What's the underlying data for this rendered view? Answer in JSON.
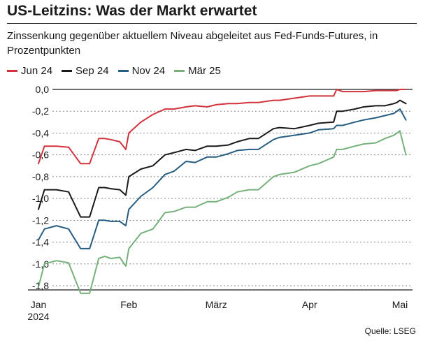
{
  "chart_data": {
    "type": "line",
    "title": "US-Leitzins: Was der Markt erwartet",
    "subtitle": "Zinssenkung gegenüber aktuellem Niveau abgeleitet aus Fed-Funds-Futures, in Prozentpunkten",
    "source": "Quelle: LSEG",
    "xlabel": "",
    "ylabel": "",
    "ylim": [
      -1.8,
      0.0
    ],
    "grid": true,
    "legend_placement": "top-left",
    "y_ticks": [
      "0,0",
      "-0,2",
      "-0,4",
      "-0,6",
      "-0,8",
      "-1,0",
      "-1,2",
      "-1,4",
      "-1,6",
      "-1,8"
    ],
    "x_ticks": [
      {
        "date": "2024-01-02",
        "label": "Jan",
        "sublabel": "2024"
      },
      {
        "date": "2024-02-01",
        "label": "Feb",
        "sublabel": ""
      },
      {
        "date": "2024-03-01",
        "label": "März",
        "sublabel": ""
      },
      {
        "date": "2024-04-01",
        "label": "Apr",
        "sublabel": ""
      },
      {
        "date": "2024-05-01",
        "label": "Mai",
        "sublabel": ""
      }
    ],
    "x": [
      "2024-01-02",
      "2024-01-04",
      "2024-01-08",
      "2024-01-12",
      "2024-01-16",
      "2024-01-19",
      "2024-01-22",
      "2024-01-24",
      "2024-01-26",
      "2024-01-29",
      "2024-01-31",
      "2024-02-01",
      "2024-02-05",
      "2024-02-09",
      "2024-02-13",
      "2024-02-16",
      "2024-02-20",
      "2024-02-23",
      "2024-02-27",
      "2024-03-01",
      "2024-03-05",
      "2024-03-08",
      "2024-03-12",
      "2024-03-15",
      "2024-03-20",
      "2024-03-22",
      "2024-03-27",
      "2024-04-01",
      "2024-04-04",
      "2024-04-09",
      "2024-04-10",
      "2024-04-12",
      "2024-04-16",
      "2024-04-19",
      "2024-04-23",
      "2024-04-26",
      "2024-04-29",
      "2024-04-30",
      "2024-05-01",
      "2024-05-03"
    ],
    "series": [
      {
        "name": "Jun 24",
        "color": "#d1333d",
        "values": [
          -0.68,
          -0.52,
          -0.52,
          -0.53,
          -0.68,
          -0.68,
          -0.45,
          -0.45,
          -0.46,
          -0.48,
          -0.55,
          -0.4,
          -0.3,
          -0.23,
          -0.18,
          -0.18,
          -0.16,
          -0.15,
          -0.16,
          -0.14,
          -0.13,
          -0.13,
          -0.12,
          -0.12,
          -0.1,
          -0.1,
          -0.08,
          -0.06,
          -0.06,
          -0.06,
          0.0,
          -0.02,
          -0.02,
          -0.02,
          -0.01,
          -0.01,
          -0.01,
          -0.01,
          0.0,
          0.0
        ]
      },
      {
        "name": "Sep 24",
        "color": "#1a1a1a",
        "values": [
          -1.1,
          -0.92,
          -0.92,
          -0.94,
          -1.17,
          -1.17,
          -0.9,
          -0.9,
          -0.91,
          -0.92,
          -0.97,
          -0.8,
          -0.73,
          -0.7,
          -0.6,
          -0.58,
          -0.55,
          -0.56,
          -0.52,
          -0.52,
          -0.51,
          -0.48,
          -0.45,
          -0.45,
          -0.36,
          -0.35,
          -0.36,
          -0.33,
          -0.31,
          -0.3,
          -0.2,
          -0.2,
          -0.18,
          -0.16,
          -0.15,
          -0.15,
          -0.13,
          -0.12,
          -0.1,
          -0.13
        ]
      },
      {
        "name": "Nov 24",
        "color": "#265d80",
        "values": [
          -1.38,
          -1.28,
          -1.25,
          -1.28,
          -1.46,
          -1.46,
          -1.2,
          -1.2,
          -1.21,
          -1.21,
          -1.25,
          -1.1,
          -0.98,
          -0.9,
          -0.78,
          -0.75,
          -0.66,
          -0.67,
          -0.62,
          -0.62,
          -0.59,
          -0.56,
          -0.55,
          -0.55,
          -0.46,
          -0.44,
          -0.42,
          -0.4,
          -0.37,
          -0.36,
          -0.33,
          -0.33,
          -0.3,
          -0.28,
          -0.26,
          -0.24,
          -0.22,
          -0.2,
          -0.18,
          -0.28
        ]
      },
      {
        "name": "Mär 25",
        "color": "#76b17c",
        "values": [
          -1.81,
          -1.6,
          -1.57,
          -1.59,
          -1.87,
          -1.87,
          -1.55,
          -1.53,
          -1.55,
          -1.54,
          -1.62,
          -1.46,
          -1.32,
          -1.28,
          -1.13,
          -1.12,
          -1.08,
          -1.08,
          -1.03,
          -1.03,
          -0.99,
          -0.94,
          -0.92,
          -0.92,
          -0.8,
          -0.78,
          -0.76,
          -0.7,
          -0.68,
          -0.62,
          -0.55,
          -0.55,
          -0.52,
          -0.5,
          -0.49,
          -0.45,
          -0.42,
          -0.4,
          -0.38,
          -0.6
        ]
      }
    ]
  }
}
